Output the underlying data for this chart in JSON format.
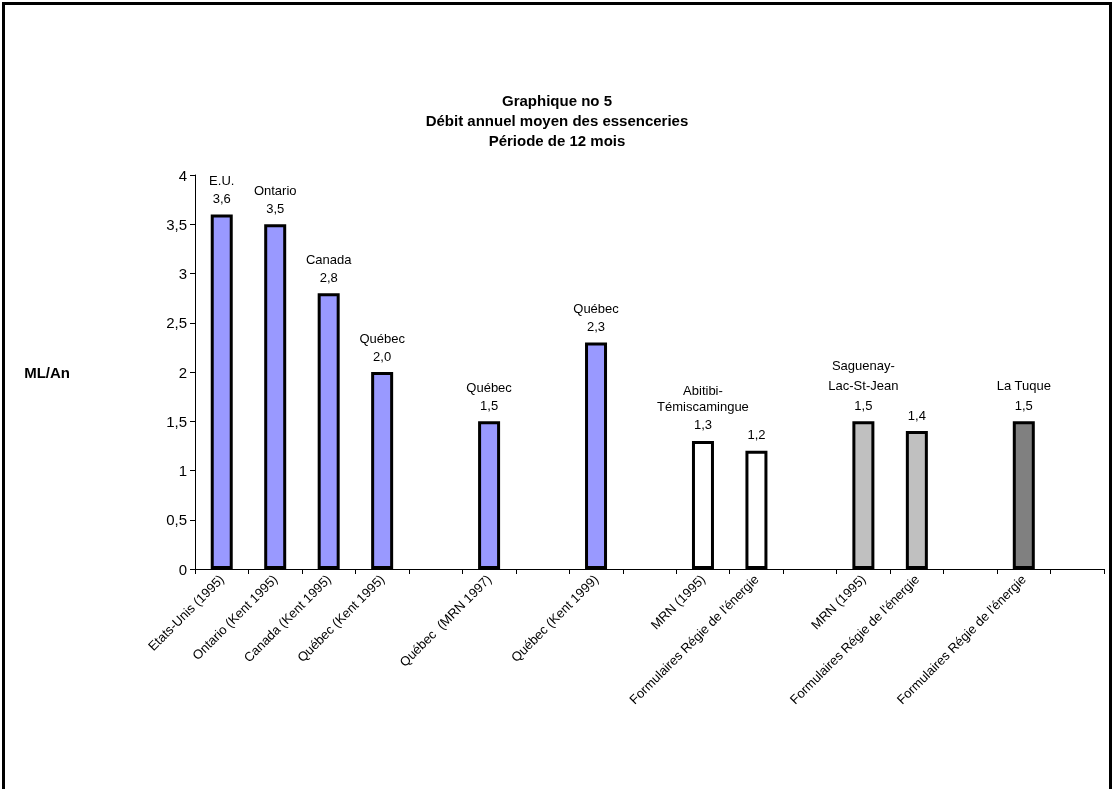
{
  "chart_data": {
    "type": "bar",
    "title": "Graphique no 5\nDébit annuel moyen des essenceries\nPériode de 12 mois",
    "ylabel": "ML/An",
    "categories": [
      "Etats-Unis (1995)",
      "Ontario (Kent 1995)",
      "Canada (Kent 1995)",
      "Québec (Kent 1995)",
      null,
      "Québec  (MRN 1997)",
      null,
      "Québec (Kent 1999)",
      null,
      "MRN (1995)",
      "Formulaires Régie de l'énergie",
      null,
      "MRN (1995)",
      "Formulaires Régie de l'énergie",
      null,
      "Formulaires Régie de l'énergie",
      null
    ],
    "values": [
      3.6,
      3.5,
      2.8,
      2.0,
      null,
      1.5,
      null,
      2.3,
      null,
      1.3,
      1.2,
      null,
      1.5,
      1.4,
      null,
      1.5,
      null
    ],
    "value_labels": [
      "3,6",
      "3,5",
      "2,8",
      "2,0",
      null,
      "1,5",
      null,
      "2,3",
      null,
      "1,3",
      "1,2",
      null,
      "Saguenay-\nLac-St-Jean\n1,5",
      "1,4",
      null,
      "La Tuque\n1,5",
      null
    ],
    "colors": [
      "#9999ff",
      "#9999ff",
      "#9999ff",
      "#9999ff",
      null,
      "#9999ff",
      null,
      "#9999ff",
      null,
      "#ffffff",
      "#ffffff",
      null,
      "#c0c0c0",
      "#c0c0c0",
      null,
      "#808080",
      null
    ],
    "annotations": [
      {
        "text": "E.U.",
        "x": "Etats-Unis (1995)",
        "y": 3.6
      },
      {
        "text": "Ontario",
        "x": "Ontario (Kent 1995)",
        "y": 3.5
      },
      {
        "text": "Canada",
        "x": "Canada (Kent 1995)",
        "y": 2.8
      },
      {
        "text": "Québec",
        "x": "Québec (Kent 1995)",
        "y": 2.0
      },
      {
        "text": "Québec",
        "x": "Québec  (MRN 1997)",
        "y": 1.5
      },
      {
        "text": "Québec",
        "x": "Québec (Kent 1999)",
        "y": 2.3
      },
      {
        "text": "Abitibi-\nTémiscamingue",
        "x": "MRN (1995)",
        "y": 1.3
      }
    ],
    "ylim": [
      0,
      4
    ],
    "yticks": [
      0,
      {
        "value": 0.5,
        "label": "0,5"
      },
      1,
      {
        "value": 1.5,
        "label": "1,5"
      },
      2,
      {
        "value": 2.5,
        "label": "2,5"
      },
      3,
      {
        "value": 3.5,
        "label": "3,5"
      },
      4
    ],
    "grid": false
  }
}
